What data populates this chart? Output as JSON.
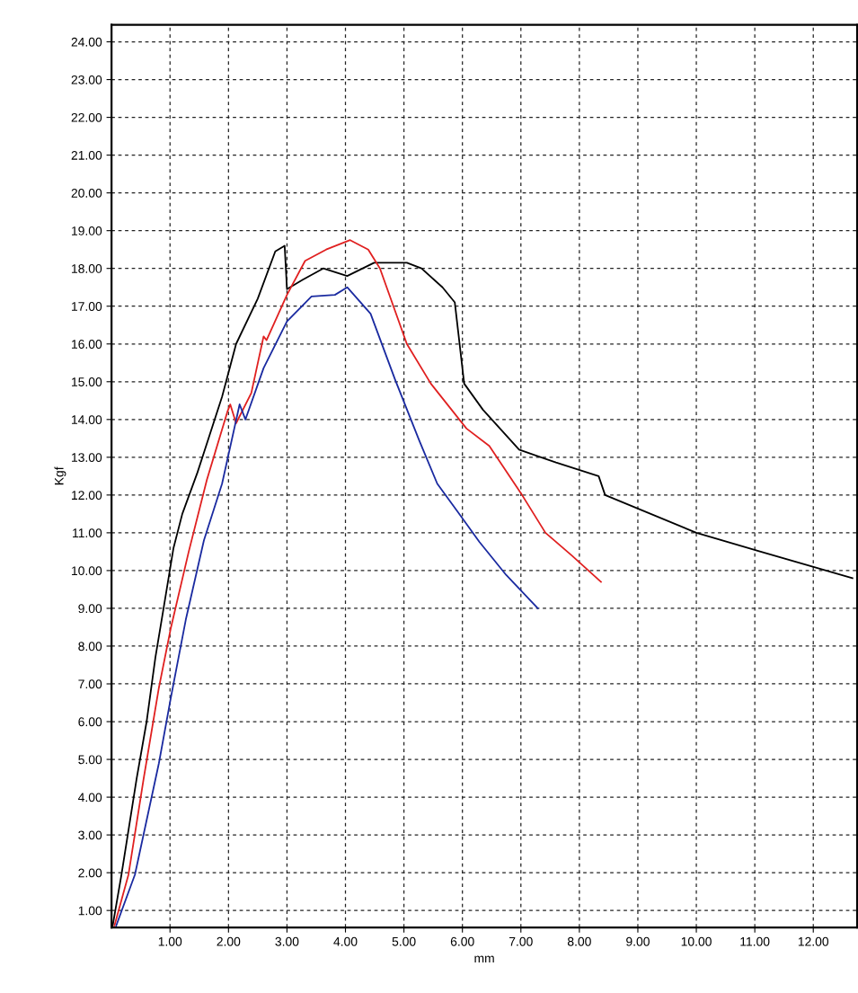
{
  "chart_data": {
    "type": "line",
    "xlabel": "mm",
    "ylabel": "Kgf",
    "xlim": [
      0,
      12.75
    ],
    "ylim": [
      0.55,
      24.45
    ],
    "xticks": [
      {
        "value": 1,
        "label": "1.00"
      },
      {
        "value": 2,
        "label": "2.00"
      },
      {
        "value": 3,
        "label": "3.00"
      },
      {
        "value": 4,
        "label": "4.00"
      },
      {
        "value": 5,
        "label": "5.00"
      },
      {
        "value": 6,
        "label": "6.00"
      },
      {
        "value": 7,
        "label": "7.00"
      },
      {
        "value": 8,
        "label": "8.00"
      },
      {
        "value": 9,
        "label": "9.00"
      },
      {
        "value": 10,
        "label": "10.00"
      },
      {
        "value": 11,
        "label": "11.00"
      },
      {
        "value": 12,
        "label": "12.00"
      }
    ],
    "yticks": [
      {
        "value": 1,
        "label": "1.00"
      },
      {
        "value": 2,
        "label": "2.00"
      },
      {
        "value": 3,
        "label": "3.00"
      },
      {
        "value": 4,
        "label": "4.00"
      },
      {
        "value": 5,
        "label": "5.00"
      },
      {
        "value": 6,
        "label": "6.00"
      },
      {
        "value": 7,
        "label": "7.00"
      },
      {
        "value": 8,
        "label": "8.00"
      },
      {
        "value": 9,
        "label": "9.00"
      },
      {
        "value": 10,
        "label": "10.00"
      },
      {
        "value": 11,
        "label": "11.00"
      },
      {
        "value": 12,
        "label": "12.00"
      },
      {
        "value": 13,
        "label": "13.00"
      },
      {
        "value": 14,
        "label": "14.00"
      },
      {
        "value": 15,
        "label": "15.00"
      },
      {
        "value": 16,
        "label": "16.00"
      },
      {
        "value": 17,
        "label": "17.00"
      },
      {
        "value": 18,
        "label": "18.00"
      },
      {
        "value": 19,
        "label": "19.00"
      },
      {
        "value": 20,
        "label": "20.00"
      },
      {
        "value": 21,
        "label": "21.00"
      },
      {
        "value": 22,
        "label": "22.00"
      },
      {
        "value": 23,
        "label": "23.00"
      },
      {
        "value": 24,
        "label": "24.00"
      }
    ],
    "grid": true,
    "line_style": "solid",
    "marker": "none",
    "series": [
      {
        "color": "#000000",
        "x": [
          0.02,
          0.17,
          0.43,
          0.6,
          0.75,
          0.89,
          1.06,
          1.21,
          1.47,
          1.89,
          2.13,
          2.5,
          2.8,
          2.96,
          3.0,
          3.27,
          3.62,
          4.03,
          4.49,
          5.05,
          5.3,
          5.66,
          5.87,
          6.03,
          6.35,
          6.97,
          7.6,
          8.33,
          8.44,
          10.0,
          11.1,
          12.67
        ],
        "values": [
          0.6,
          1.95,
          4.5,
          6.0,
          7.7,
          9.0,
          10.6,
          11.5,
          12.6,
          14.6,
          16.0,
          17.2,
          18.45,
          18.6,
          17.45,
          17.7,
          18.0,
          17.8,
          18.15,
          18.15,
          18.0,
          17.5,
          17.1,
          14.95,
          14.26,
          13.2,
          12.86,
          12.5,
          12.0,
          11.0,
          10.5,
          9.8
        ]
      },
      {
        "color": "#e02020",
        "x": [
          0.05,
          0.29,
          0.55,
          0.81,
          1.01,
          1.32,
          1.63,
          1.98,
          2.03,
          2.13,
          2.39,
          2.6,
          2.65,
          3.0,
          3.31,
          3.67,
          4.08,
          4.39,
          4.59,
          5.05,
          5.46,
          6.07,
          6.46,
          7.02,
          7.42,
          7.87,
          8.37
        ],
        "values": [
          0.6,
          1.95,
          4.5,
          6.9,
          8.45,
          10.5,
          12.4,
          14.2,
          14.4,
          13.9,
          14.7,
          16.2,
          16.1,
          17.3,
          18.2,
          18.5,
          18.75,
          18.5,
          18.0,
          16.0,
          14.95,
          13.76,
          13.3,
          12.0,
          11.0,
          10.4,
          9.7
        ]
      },
      {
        "color": "#1a2aa0",
        "x": [
          0.08,
          0.4,
          0.81,
          1.01,
          1.27,
          1.58,
          1.89,
          2.19,
          2.29,
          2.6,
          3.0,
          3.42,
          3.82,
          4.03,
          4.43,
          4.85,
          5.26,
          5.57,
          5.9,
          6.29,
          6.75,
          7.29
        ],
        "values": [
          0.6,
          1.95,
          4.9,
          6.6,
          8.7,
          10.8,
          12.3,
          14.4,
          14.0,
          15.36,
          16.6,
          17.26,
          17.3,
          17.5,
          16.8,
          15.05,
          13.45,
          12.3,
          11.6,
          10.76,
          9.88,
          9.0
        ]
      }
    ]
  }
}
